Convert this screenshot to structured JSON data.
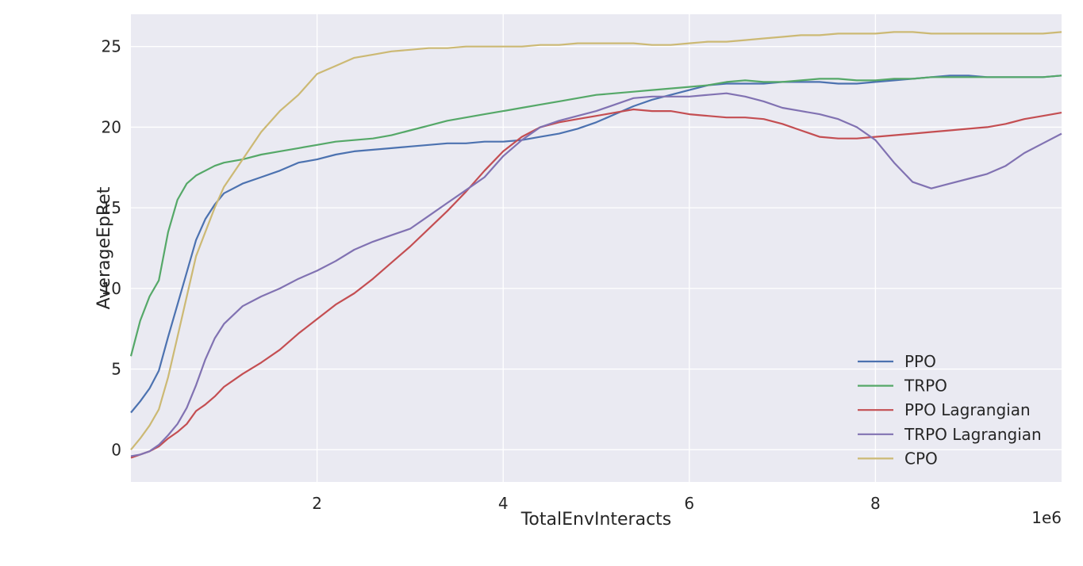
{
  "chart_data": {
    "type": "line",
    "xlabel": "TotalEnvInteracts",
    "ylabel": "AverageEpRet",
    "x_offset_label": "1e6",
    "xlim": [
      0.0,
      10.0
    ],
    "ylim": [
      -2.0,
      27.0
    ],
    "x_ticks": [
      2,
      4,
      6,
      8
    ],
    "y_ticks": [
      0,
      5,
      10,
      15,
      20,
      25
    ],
    "grid": true,
    "legend_position": "lower-right",
    "x": [
      0,
      0.1,
      0.2,
      0.3,
      0.4,
      0.5,
      0.6,
      0.7,
      0.8,
      0.9,
      1.0,
      1.2,
      1.4,
      1.6,
      1.8,
      2.0,
      2.2,
      2.4,
      2.6,
      2.8,
      3.0,
      3.2,
      3.4,
      3.6,
      3.8,
      4.0,
      4.2,
      4.4,
      4.6,
      4.8,
      5.0,
      5.2,
      5.4,
      5.6,
      5.8,
      6.0,
      6.2,
      6.4,
      6.6,
      6.8,
      7.0,
      7.2,
      7.4,
      7.6,
      7.8,
      8.0,
      8.2,
      8.4,
      8.6,
      8.8,
      9.0,
      9.2,
      9.4,
      9.6,
      9.8,
      10.0
    ],
    "series": [
      {
        "name": "PPO",
        "color": "#4c72b0",
        "values": [
          2.3,
          3.0,
          3.8,
          4.9,
          7.0,
          9.0,
          11.0,
          13.0,
          14.3,
          15.2,
          15.9,
          16.5,
          16.9,
          17.3,
          17.8,
          18.0,
          18.3,
          18.5,
          18.6,
          18.7,
          18.8,
          18.9,
          19.0,
          19.0,
          19.1,
          19.1,
          19.2,
          19.4,
          19.6,
          19.9,
          20.3,
          20.8,
          21.3,
          21.7,
          22.0,
          22.3,
          22.6,
          22.7,
          22.7,
          22.7,
          22.8,
          22.8,
          22.8,
          22.7,
          22.7,
          22.8,
          22.9,
          23.0,
          23.1,
          23.2,
          23.2,
          23.1,
          23.1,
          23.1,
          23.1,
          23.2
        ]
      },
      {
        "name": "TRPO",
        "color": "#55a868",
        "values": [
          5.8,
          8.0,
          9.5,
          10.5,
          13.5,
          15.5,
          16.5,
          17.0,
          17.3,
          17.6,
          17.8,
          18.0,
          18.3,
          18.5,
          18.7,
          18.9,
          19.1,
          19.2,
          19.3,
          19.5,
          19.8,
          20.1,
          20.4,
          20.6,
          20.8,
          21.0,
          21.2,
          21.4,
          21.6,
          21.8,
          22.0,
          22.1,
          22.2,
          22.3,
          22.4,
          22.5,
          22.6,
          22.8,
          22.9,
          22.8,
          22.8,
          22.9,
          23.0,
          23.0,
          22.9,
          22.9,
          23.0,
          23.0,
          23.1,
          23.1,
          23.1,
          23.1,
          23.1,
          23.1,
          23.1,
          23.2
        ]
      },
      {
        "name": "PPO Lagrangian",
        "color": "#c44e52",
        "values": [
          -0.5,
          -0.3,
          -0.1,
          0.2,
          0.7,
          1.1,
          1.6,
          2.4,
          2.8,
          3.3,
          3.9,
          4.7,
          5.4,
          6.2,
          7.2,
          8.1,
          9.0,
          9.7,
          10.6,
          11.6,
          12.6,
          13.7,
          14.8,
          16.0,
          17.3,
          18.5,
          19.4,
          20.0,
          20.3,
          20.5,
          20.7,
          20.9,
          21.1,
          21.0,
          21.0,
          20.8,
          20.7,
          20.6,
          20.6,
          20.5,
          20.2,
          19.8,
          19.4,
          19.3,
          19.3,
          19.4,
          19.5,
          19.6,
          19.7,
          19.8,
          19.9,
          20.0,
          20.2,
          20.5,
          20.7,
          20.9
        ]
      },
      {
        "name": "TRPO Lagrangian",
        "color": "#8172b2",
        "values": [
          -0.4,
          -0.3,
          -0.1,
          0.3,
          0.9,
          1.6,
          2.6,
          4.0,
          5.6,
          6.9,
          7.8,
          8.9,
          9.5,
          10.0,
          10.6,
          11.1,
          11.7,
          12.4,
          12.9,
          13.3,
          13.7,
          14.5,
          15.3,
          16.1,
          16.9,
          18.2,
          19.2,
          20.0,
          20.4,
          20.7,
          21.0,
          21.4,
          21.8,
          21.9,
          21.9,
          21.9,
          22.0,
          22.1,
          21.9,
          21.6,
          21.2,
          21.0,
          20.8,
          20.5,
          20.0,
          19.2,
          17.8,
          16.6,
          16.2,
          16.5,
          16.8,
          17.1,
          17.6,
          18.4,
          19.0,
          19.6
        ]
      },
      {
        "name": "CPO",
        "color": "#ccb974",
        "values": [
          0.0,
          0.7,
          1.5,
          2.5,
          4.5,
          7.0,
          9.5,
          12.0,
          13.5,
          15.0,
          16.3,
          18.0,
          19.7,
          21.0,
          22.0,
          23.3,
          23.8,
          24.3,
          24.5,
          24.7,
          24.8,
          24.9,
          24.9,
          25.0,
          25.0,
          25.0,
          25.0,
          25.1,
          25.1,
          25.2,
          25.2,
          25.2,
          25.2,
          25.1,
          25.1,
          25.2,
          25.3,
          25.3,
          25.4,
          25.5,
          25.6,
          25.7,
          25.7,
          25.8,
          25.8,
          25.8,
          25.9,
          25.9,
          25.8,
          25.8,
          25.8,
          25.8,
          25.8,
          25.8,
          25.8,
          25.9
        ]
      }
    ]
  }
}
